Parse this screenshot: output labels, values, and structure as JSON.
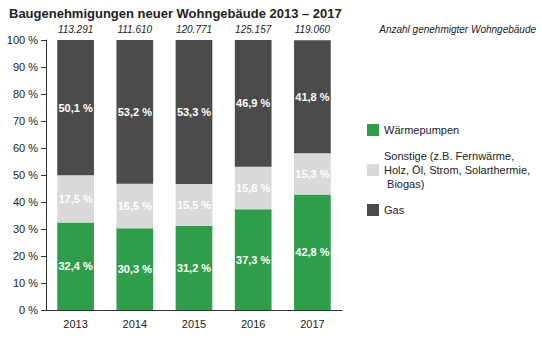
{
  "chart_data": {
    "type": "bar",
    "title": "Baugenehmigungen neuer Wohngebäude 2013 – 2017",
    "stacked": true,
    "data_labels": true,
    "grid": false,
    "legend": "right",
    "categories": [
      "2013",
      "2014",
      "2015",
      "2016",
      "2017"
    ],
    "totals_title": "Anzahl genehmigter Wohngebäude",
    "totals": [
      113291,
      111610,
      120771,
      125157,
      119060
    ],
    "total_labels": [
      "113.291",
      "111.610",
      "120.771",
      "125.157",
      "119.060"
    ],
    "series": [
      {
        "name": "Wärmepumpen",
        "color": "#2f9e4a",
        "values": [
          32.4,
          30.3,
          31.2,
          37.3,
          42.8
        ],
        "value_labels": [
          "32,4 %",
          "30,3 %",
          "31,2 %",
          "37,3 %",
          "42,8 %"
        ]
      },
      {
        "name": "Sonstige (z.B. Fernwärme, Holz, Öl, Strom, Solarthermie, Biogas)",
        "color": "#d9d9d9",
        "values": [
          17.5,
          16.5,
          15.5,
          15.8,
          15.3
        ],
        "value_labels": [
          "17,5 %",
          "16,5 %",
          "15,5 %",
          "15,8 %",
          "15,3 %"
        ]
      },
      {
        "name": "Gas",
        "color": "#4b4b4b",
        "values": [
          50.1,
          53.2,
          53.3,
          46.9,
          41.8
        ],
        "value_labels": [
          "50,1 %",
          "53,2 %",
          "53,3 %",
          "46,9 %",
          "41,8 %"
        ]
      }
    ],
    "ylim": [
      0,
      100
    ],
    "yticks": [
      {
        "value": 0,
        "label": "0 %"
      },
      {
        "value": 10,
        "label": "10 %"
      },
      {
        "value": 20,
        "label": "20 %"
      },
      {
        "value": 30,
        "label": "30 %"
      },
      {
        "value": 40,
        "label": "40 %"
      },
      {
        "value": 50,
        "label": "50 %"
      },
      {
        "value": 60,
        "label": "60 %"
      },
      {
        "value": 70,
        "label": "70 %"
      },
      {
        "value": 80,
        "label": "80 %"
      },
      {
        "value": 90,
        "label": "90 %"
      },
      {
        "value": 100,
        "label": "100 %"
      }
    ]
  }
}
